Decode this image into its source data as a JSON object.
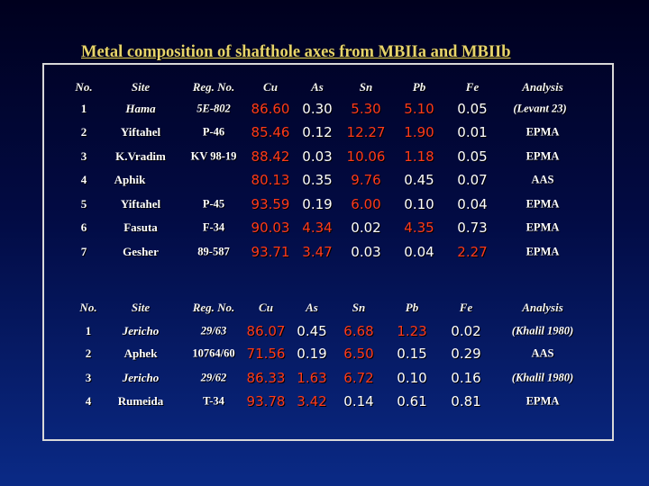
{
  "title": "Metal composition of shafthole axes from MBIIa and MBIIb",
  "colors": {
    "title": "#e7d46a",
    "highlight": "#ff3a1a",
    "text": "#ffffff"
  },
  "tables": [
    {
      "headers": [
        "No.",
        "Site",
        "Reg. No.",
        "Cu",
        "As",
        "Sn",
        "Pb",
        "Fe",
        "Analysis"
      ],
      "rows": [
        {
          "no": "1",
          "site": "Hama",
          "reg": "5E-802",
          "cu": "86.60",
          "as": "0.30",
          "sn": "5.30",
          "pb": "5.10",
          "fe": "0.05",
          "analysis": "(Levant 23)",
          "red": [
            "cu",
            "sn",
            "pb"
          ],
          "italic": [
            "site",
            "reg",
            "analysis"
          ]
        },
        {
          "no": "2",
          "site": "Yiftahel",
          "reg": "P-46",
          "cu": "85.46",
          "as": "0.12",
          "sn": "12.27",
          "pb": "1.90",
          "fe": "0.01",
          "analysis": "EPMA",
          "red": [
            "cu",
            "sn",
            "pb"
          ],
          "italic": []
        },
        {
          "no": "3",
          "site": "K.Vradim",
          "reg": "KV 98-19",
          "cu": "88.42",
          "as": "0.03",
          "sn": "10.06",
          "pb": "1.18",
          "fe": "0.05",
          "analysis": "EPMA",
          "red": [
            "cu",
            "sn",
            "pb"
          ],
          "italic": []
        },
        {
          "no": "4",
          "site": "Aphik",
          "reg": "",
          "cu": "80.13",
          "as": "0.35",
          "sn": "9.76",
          "pb": "0.45",
          "fe": "0.07",
          "analysis": "AAS",
          "red": [
            "cu",
            "sn"
          ],
          "italic": []
        },
        {
          "no": "5",
          "site": "Yiftahel",
          "reg": "P-45",
          "cu": "93.59",
          "as": "0.19",
          "sn": "6.00",
          "pb": "0.10",
          "fe": "0.04",
          "analysis": "EPMA",
          "red": [
            "cu",
            "sn"
          ],
          "italic": []
        },
        {
          "no": "6",
          "site": "Fasuta",
          "reg": "F-34",
          "cu": "90.03",
          "as": "4.34",
          "sn": "0.02",
          "pb": "4.35",
          "fe": "0.73",
          "analysis": "EPMA",
          "red": [
            "cu",
            "as",
            "pb"
          ],
          "italic": []
        },
        {
          "no": "7",
          "site": "Gesher",
          "reg": "89-587",
          "cu": "93.71",
          "as": "3.47",
          "sn": "0.03",
          "pb": "0.04",
          "fe": "2.27",
          "analysis": "EPMA",
          "red": [
            "cu",
            "as",
            "fe"
          ],
          "italic": []
        }
      ]
    },
    {
      "headers": [
        "No.",
        "Site",
        "Reg. No.",
        "Cu",
        "As",
        "Sn",
        "Pb",
        "Fe",
        "Analysis"
      ],
      "rows": [
        {
          "no": "1",
          "site": "Jericho",
          "reg": "29/63",
          "cu": "86.07",
          "as": "0.45",
          "sn": "6.68",
          "pb": "1.23",
          "fe": "0.02",
          "analysis": "(Khalil 1980)",
          "red": [
            "cu",
            "sn",
            "pb"
          ],
          "italic": [
            "site",
            "reg",
            "analysis"
          ]
        },
        {
          "no": "2",
          "site": "Aphek",
          "reg": "10764/60",
          "cu": "71.56",
          "as": "0.19",
          "sn": "6.50",
          "pb": "0.15",
          "fe": "0.29",
          "analysis": "AAS",
          "red": [
            "cu",
            "sn"
          ],
          "italic": []
        },
        {
          "no": "3",
          "site": "Jericho",
          "reg": "29/62",
          "cu": "86.33",
          "as": "1.63",
          "sn": "6.72",
          "pb": "0.10",
          "fe": "0.16",
          "analysis": "(Khalil 1980)",
          "red": [
            "cu",
            "as",
            "sn"
          ],
          "italic": [
            "site",
            "reg",
            "analysis"
          ]
        },
        {
          "no": "4",
          "site": "Rumeida",
          "reg": "T-34",
          "cu": "93.78",
          "as": "3.42",
          "sn": "0.14",
          "pb": "0.61",
          "fe": "0.81",
          "analysis": "EPMA",
          "red": [
            "cu",
            "as"
          ],
          "italic": []
        }
      ]
    }
  ]
}
